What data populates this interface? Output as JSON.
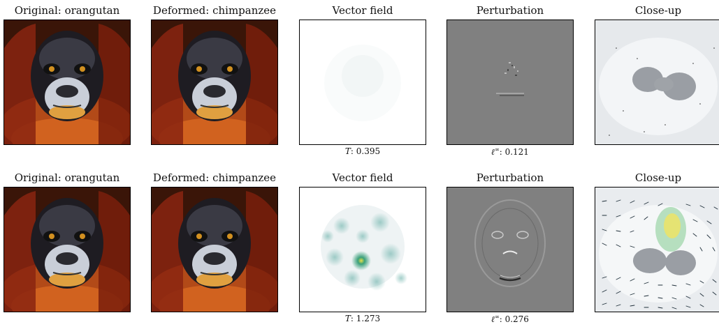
{
  "rows": [
    {
      "original_title": "Original: orangutan",
      "deformed_title": "Deformed: chimpanzee",
      "vector_title": "Vector field",
      "perturb_title": "Perturbation",
      "closeup_title": "Close-up",
      "T_label": "T",
      "T_value": ": 0.395",
      "linf_label": "ℓ",
      "linf_sup": "∞",
      "linf_value": ": 0.121"
    },
    {
      "original_title": "Original: orangutan",
      "deformed_title": "Deformed: chimpanzee",
      "vector_title": "Vector field",
      "perturb_title": "Perturbation",
      "closeup_title": "Close-up",
      "T_label": "T",
      "T_value": ": 1.273",
      "linf_label": "ℓ",
      "linf_sup": "∞",
      "linf_value": ": 0.276"
    }
  ],
  "colors": {
    "face_dark": "#2a2a32",
    "fur_orange": "#c2561e",
    "fur_red": "#8a2410",
    "muzzle_light": "#d8dde6",
    "perturb_gray": "#808080",
    "heat_green": "#3aa07a",
    "heat_yellow": "#e8e04a"
  }
}
